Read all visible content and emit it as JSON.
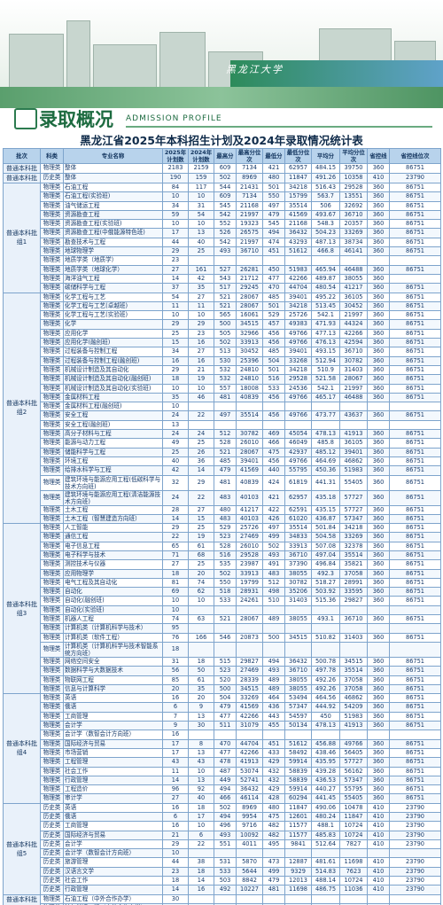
{
  "banner": {
    "calligraphy": "黑龙江大学"
  },
  "section": {
    "title_zh": "录取概况",
    "title_en": "ADMISSION PROFILE"
  },
  "table_title": "黑龙江省2025年本科招生计划及2024年录取情况统计表",
  "headers": [
    "批次",
    "科类",
    "专业名称",
    "2025年计划数",
    "2024年计划数",
    "最高分",
    "最高分位次",
    "最低分",
    "最低分位次",
    "平均分",
    "平均分位次",
    "省控线",
    "省控线位次"
  ],
  "rows": [
    [
      "普通本科批",
      "物理类",
      "整体",
      "2183",
      "2159",
      "609",
      "7134",
      "421",
      "62957",
      "484.15",
      "39750",
      "360",
      "86751"
    ],
    [
      "普通本科批",
      "历史类",
      "整体",
      "190",
      "159",
      "502",
      "8969",
      "480",
      "11847",
      "491.26",
      "10358",
      "410",
      "23790"
    ],
    [
      "普通本科批组1",
      "物理类",
      "石油工程",
      "84",
      "117",
      "544",
      "21431",
      "501",
      "34218",
      "516.43",
      "29528",
      "360",
      "86751"
    ],
    [
      "",
      "物理类",
      "石油工程(实验班)",
      "10",
      "10",
      "609",
      "7134",
      "550",
      "15799",
      "563.7",
      "13551",
      "360",
      "86751"
    ],
    [
      "",
      "物理类",
      "油气储运工程",
      "34",
      "31",
      "545",
      "21168",
      "497",
      "35514",
      "506",
      "32692",
      "360",
      "86751"
    ],
    [
      "",
      "物理类",
      "资源勘查工程",
      "59",
      "54",
      "542",
      "21997",
      "479",
      "41569",
      "493.67",
      "36710",
      "360",
      "86751"
    ],
    [
      "",
      "物理类",
      "资源勘查工程(实验班)",
      "10",
      "10",
      "552",
      "19323",
      "545",
      "21168",
      "548.3",
      "20357",
      "360",
      "86751"
    ],
    [
      "",
      "物理类",
      "资源勘查工程(中俄能源特色班)",
      "17",
      "13",
      "526",
      "26575",
      "494",
      "36432",
      "504.23",
      "33269",
      "360",
      "86751"
    ],
    [
      "",
      "物理类",
      "勘查技术与工程",
      "44",
      "40",
      "542",
      "21997",
      "474",
      "43293",
      "487.13",
      "38734",
      "360",
      "86751"
    ],
    [
      "",
      "物理类",
      "地球物理学",
      "29",
      "25",
      "493",
      "36710",
      "451",
      "51612",
      "466.8",
      "46141",
      "360",
      "86751"
    ],
    [
      "",
      "物理类",
      "地质学类（地质学）",
      "23",
      "",
      "",
      "",
      "",
      "",
      "",
      "",
      "",
      ""
    ],
    [
      "",
      "物理类",
      "地质学类（地球化学）",
      "27",
      "161",
      "527",
      "26281",
      "450",
      "51983",
      "465.94",
      "46488",
      "360",
      "86751"
    ],
    [
      "",
      "物理类",
      "海洋油气工程",
      "14",
      "42",
      "543",
      "21712",
      "477",
      "42266",
      "489.87",
      "38055",
      "360",
      ""
    ],
    [
      "",
      "物理类",
      "碳储科学与工程",
      "37",
      "35",
      "517",
      "29245",
      "470",
      "44704",
      "480.54",
      "41217",
      "360",
      "86751"
    ],
    [
      "普通本科批组2",
      "物理类",
      "化学工程与工艺",
      "54",
      "27",
      "521",
      "28067",
      "485",
      "39401",
      "495.22",
      "36105",
      "360",
      "86751"
    ],
    [
      "",
      "物理类",
      "化学工程与工艺(卓越班)",
      "11",
      "11",
      "521",
      "28067",
      "501",
      "34218",
      "513.45",
      "30452",
      "360",
      "86751"
    ],
    [
      "",
      "物理类",
      "化学工程与工艺(实验班)",
      "10",
      "10",
      "565",
      "16061",
      "529",
      "25726",
      "542.1",
      "21997",
      "360",
      "86751"
    ],
    [
      "",
      "物理类",
      "化学",
      "29",
      "29",
      "500",
      "34515",
      "457",
      "49383",
      "471.93",
      "44324",
      "360",
      "86751"
    ],
    [
      "",
      "物理类",
      "应用化学",
      "25",
      "23",
      "505",
      "32966",
      "456",
      "49766",
      "477.13",
      "42266",
      "360",
      "86751"
    ],
    [
      "",
      "物理类",
      "应用化学(融创班)",
      "15",
      "16",
      "502",
      "33913",
      "456",
      "49766",
      "476.13",
      "42594",
      "360",
      "86751"
    ],
    [
      "",
      "物理类",
      "过程装备与控制工程",
      "34",
      "27",
      "513",
      "30452",
      "485",
      "39401",
      "493.15",
      "36710",
      "360",
      "86751"
    ],
    [
      "",
      "物理类",
      "过程装备与控制工程(融创班)",
      "16",
      "16",
      "530",
      "25396",
      "504",
      "33268",
      "512.94",
      "30782",
      "360",
      "86751"
    ],
    [
      "",
      "物理类",
      "机械设计制造及其自动化",
      "29",
      "21",
      "532",
      "24810",
      "501",
      "34218",
      "510.9",
      "31403",
      "360",
      "86751"
    ],
    [
      "",
      "物理类",
      "机械设计制造及其自动化(融创班)",
      "18",
      "19",
      "532",
      "24810",
      "516",
      "29528",
      "521.58",
      "28067",
      "360",
      "86751"
    ],
    [
      "",
      "物理类",
      "机械设计制造及其自动化(实验班)",
      "10",
      "10",
      "557",
      "18008",
      "533",
      "24536",
      "542.1",
      "21997",
      "360",
      "86751"
    ],
    [
      "",
      "物理类",
      "金属材料工程",
      "35",
      "46",
      "481",
      "40839",
      "456",
      "49766",
      "465.17",
      "46488",
      "360",
      "86751"
    ],
    [
      "",
      "物理类",
      "金属材料工程(融创班)",
      "10",
      "",
      "",
      "",
      "",
      "",
      "",
      "",
      "",
      ""
    ],
    [
      "",
      "物理类",
      "安全工程",
      "24",
      "22",
      "497",
      "35514",
      "456",
      "49766",
      "473.77",
      "43637",
      "360",
      "86751"
    ],
    [
      "",
      "物理类",
      "安全工程(融创班)",
      "13",
      "",
      "",
      "",
      "",
      "",
      "",
      "",
      "",
      ""
    ],
    [
      "",
      "物理类",
      "高分子材料与工程",
      "24",
      "24",
      "512",
      "30782",
      "469",
      "45054",
      "478.13",
      "41913",
      "360",
      "86751"
    ],
    [
      "",
      "物理类",
      "能源与动力工程",
      "49",
      "25",
      "528",
      "26010",
      "466",
      "46049",
      "485.8",
      "36105",
      "360",
      "86751"
    ],
    [
      "",
      "物理类",
      "储能科学与工程",
      "25",
      "26",
      "521",
      "28067",
      "475",
      "42937",
      "485.12",
      "39401",
      "360",
      "86751"
    ],
    [
      "",
      "物理类",
      "环境工程",
      "40",
      "36",
      "485",
      "39401",
      "456",
      "49766",
      "464.69",
      "46862",
      "360",
      "86751"
    ],
    [
      "",
      "物理类",
      "给排水科学与工程",
      "42",
      "14",
      "479",
      "41569",
      "440",
      "55795",
      "450.36",
      "51983",
      "360",
      "86751"
    ],
    [
      "",
      "物理类",
      "建筑环境与能源应用工程(低碳科学与技术方向班)",
      "32",
      "29",
      "481",
      "40839",
      "424",
      "61819",
      "441.31",
      "55405",
      "360",
      "86751"
    ],
    [
      "",
      "物理类",
      "建筑环境与能源应用工程(清洁能源技术方向班)",
      "24",
      "22",
      "483",
      "40103",
      "421",
      "62957",
      "435.18",
      "57727",
      "360",
      "86751"
    ],
    [
      "",
      "物理类",
      "土木工程",
      "28",
      "27",
      "480",
      "41217",
      "422",
      "62591",
      "435.15",
      "57727",
      "360",
      "86751"
    ],
    [
      "",
      "物理类",
      "土木工程（智慧建造方向班）",
      "14",
      "15",
      "483",
      "40103",
      "426",
      "61020",
      "436.87",
      "57347",
      "360",
      "86751"
    ],
    [
      "普通本科批组3",
      "物理类",
      "人工智能",
      "29",
      "25",
      "529",
      "25726",
      "497",
      "35514",
      "501.84",
      "34218",
      "360",
      "86751"
    ],
    [
      "",
      "物理类",
      "通信工程",
      "22",
      "19",
      "523",
      "27469",
      "499",
      "34833",
      "504.58",
      "33269",
      "360",
      "86751"
    ],
    [
      "",
      "物理类",
      "电子信息工程",
      "65",
      "61",
      "528",
      "26010",
      "502",
      "33913",
      "507.08",
      "32378",
      "360",
      "86751"
    ],
    [
      "",
      "物理类",
      "电子科学与技术",
      "71",
      "68",
      "516",
      "29528",
      "493",
      "36710",
      "497.04",
      "35514",
      "360",
      "86751"
    ],
    [
      "",
      "物理类",
      "测控技术与仪器",
      "27",
      "25",
      "535",
      "23987",
      "491",
      "37390",
      "496.84",
      "35821",
      "360",
      "86751"
    ],
    [
      "",
      "物理类",
      "应用物理学",
      "18",
      "20",
      "502",
      "33913",
      "483",
      "38055",
      "492.3",
      "37058",
      "360",
      "86751"
    ],
    [
      "",
      "物理类",
      "电气工程及其自动化",
      "81",
      "74",
      "550",
      "19799",
      "512",
      "30782",
      "518.27",
      "28991",
      "360",
      "86751"
    ],
    [
      "",
      "物理类",
      "自动化",
      "69",
      "62",
      "518",
      "28931",
      "498",
      "35206",
      "503.92",
      "33595",
      "360",
      "86751"
    ],
    [
      "",
      "物理类",
      "自动化(融创班)",
      "10",
      "10",
      "533",
      "24261",
      "510",
      "31403",
      "515.36",
      "29827",
      "360",
      "86751"
    ],
    [
      "",
      "物理类",
      "自动化(实验班)",
      "10",
      "",
      "",
      "",
      "",
      "",
      "",
      "",
      "",
      ""
    ],
    [
      "",
      "物理类",
      "机器人工程",
      "74",
      "63",
      "521",
      "28067",
      "489",
      "38055",
      "493.1",
      "36710",
      "360",
      "86751"
    ],
    [
      "",
      "物理类",
      "计算机类（计算机科学与技术）",
      "95",
      "",
      "",
      "",
      "",
      "",
      "",
      "",
      "",
      ""
    ],
    [
      "",
      "物理类",
      "计算机类（软件工程）",
      "76",
      "166",
      "546",
      "20873",
      "500",
      "34515",
      "510.82",
      "31403",
      "360",
      "86751"
    ],
    [
      "",
      "物理类",
      "计算机类（计算机科学与技术智能系统方向班）",
      "18",
      "",
      "",
      "",
      "",
      "",
      "",
      "",
      "",
      ""
    ],
    [
      "",
      "物理类",
      "网络空间安全",
      "31",
      "18",
      "515",
      "29827",
      "494",
      "36432",
      "500.78",
      "34515",
      "360",
      "86751"
    ],
    [
      "",
      "物理类",
      "数据科学与大数据技术",
      "56",
      "50",
      "523",
      "27469",
      "493",
      "36710",
      "497.78",
      "35514",
      "360",
      "86751"
    ],
    [
      "",
      "物理类",
      "物联网工程",
      "85",
      "61",
      "520",
      "28339",
      "489",
      "38055",
      "492.26",
      "37058",
      "360",
      "86751"
    ],
    [
      "",
      "物理类",
      "信息与计算科学",
      "20",
      "35",
      "500",
      "34515",
      "489",
      "38055",
      "492.26",
      "37058",
      "360",
      "86751"
    ],
    [
      "普通本科批组4",
      "物理类",
      "英语",
      "16",
      "20",
      "504",
      "33269",
      "464",
      "53494",
      "464.56",
      "46862",
      "360",
      "86751"
    ],
    [
      "",
      "物理类",
      "俄语",
      "6",
      "9",
      "479",
      "41569",
      "436",
      "57347",
      "444.92",
      "54209",
      "360",
      "86751"
    ],
    [
      "",
      "物理类",
      "工商管理",
      "7",
      "13",
      "477",
      "42266",
      "443",
      "54597",
      "450",
      "51983",
      "360",
      "86751"
    ],
    [
      "",
      "物理类",
      "会计学",
      "9",
      "30",
      "511",
      "31079",
      "455",
      "50134",
      "478.13",
      "41913",
      "360",
      "86751"
    ],
    [
      "",
      "物理类",
      "会计学（数智会计方向班）",
      "16",
      "",
      "",
      "",
      "",
      "",
      "",
      "",
      "",
      ""
    ],
    [
      "",
      "物理类",
      "国际经济与贸易",
      "17",
      "8",
      "470",
      "44704",
      "451",
      "51612",
      "456.88",
      "49766",
      "360",
      "86751"
    ],
    [
      "",
      "物理类",
      "市场营销",
      "17",
      "13",
      "477",
      "42266",
      "433",
      "58492",
      "438.46",
      "56405",
      "360",
      "86751"
    ],
    [
      "",
      "物理类",
      "工程管理",
      "43",
      "43",
      "478",
      "41913",
      "429",
      "59914",
      "435.95",
      "57727",
      "360",
      "86751"
    ],
    [
      "",
      "物理类",
      "社会工作",
      "11",
      "10",
      "487",
      "53074",
      "432",
      "58839",
      "439.28",
      "56162",
      "360",
      "86751"
    ],
    [
      "",
      "物理类",
      "行政管理",
      "14",
      "13",
      "449",
      "52741",
      "432",
      "58839",
      "436.53",
      "57347",
      "360",
      "86751"
    ],
    [
      "",
      "物理类",
      "工程造价",
      "96",
      "92",
      "494",
      "36432",
      "429",
      "59914",
      "440.27",
      "55795",
      "360",
      "86751"
    ],
    [
      "",
      "物理类",
      "审计学",
      "27",
      "40",
      "466",
      "46114",
      "428",
      "60294",
      "441.45",
      "55405",
      "360",
      "86751"
    ],
    [
      "普通本科批组5",
      "历史类",
      "英语",
      "16",
      "18",
      "502",
      "8969",
      "480",
      "11847",
      "490.06",
      "10478",
      "410",
      "23790"
    ],
    [
      "",
      "历史类",
      "俄语",
      "6",
      "17",
      "494",
      "9954",
      "475",
      "12601",
      "480.24",
      "11847",
      "410",
      "23790"
    ],
    [
      "",
      "历史类",
      "工商管理",
      "16",
      "10",
      "496",
      "9716",
      "482",
      "11577",
      "488.1",
      "10724",
      "410",
      "23790"
    ],
    [
      "",
      "历史类",
      "国际经济与贸易",
      "21",
      "6",
      "493",
      "10092",
      "482",
      "11577",
      "485.83",
      "10724",
      "410",
      "23790"
    ],
    [
      "",
      "历史类",
      "会计学",
      "29",
      "22",
      "551",
      "4011",
      "495",
      "9841",
      "512.64",
      "7827",
      "410",
      "23790"
    ],
    [
      "",
      "历史类",
      "会计学（数智会计方向班）",
      "10",
      "",
      "",
      "",
      "",
      "",
      "",
      "",
      "",
      ""
    ],
    [
      "",
      "历史类",
      "旅游管理",
      "44",
      "38",
      "531",
      "5870",
      "473",
      "12887",
      "481.61",
      "11698",
      "410",
      "23790"
    ],
    [
      "",
      "历史类",
      "汉语言文学",
      "23",
      "18",
      "533",
      "5644",
      "499",
      "9329",
      "514.83",
      "7623",
      "410",
      "23790"
    ],
    [
      "",
      "历史类",
      "社会工作",
      "18",
      "14",
      "503",
      "8842",
      "479",
      "12013",
      "488.14",
      "10724",
      "410",
      "23790"
    ],
    [
      "",
      "历史类",
      "行政管理",
      "14",
      "16",
      "492",
      "10227",
      "481",
      "11698",
      "486.75",
      "11036",
      "410",
      "23790"
    ],
    [
      "普通本科批组6",
      "物理类",
      "石油工程（中外合作办学）",
      "30",
      "",
      "",
      "",
      "",
      "",
      "",
      "",
      "",
      ""
    ],
    [
      "",
      "物理类",
      "油气储运工程（中外合作办学）",
      "35",
      "",
      "",
      "",
      "",
      "",
      "",
      "",
      "",
      ""
    ]
  ],
  "footer": {
    "batch": "艺术类",
    "category": "环境设计、舞蹈编导、音乐表演",
    "note": "按专业成专业方向单独成组"
  }
}
